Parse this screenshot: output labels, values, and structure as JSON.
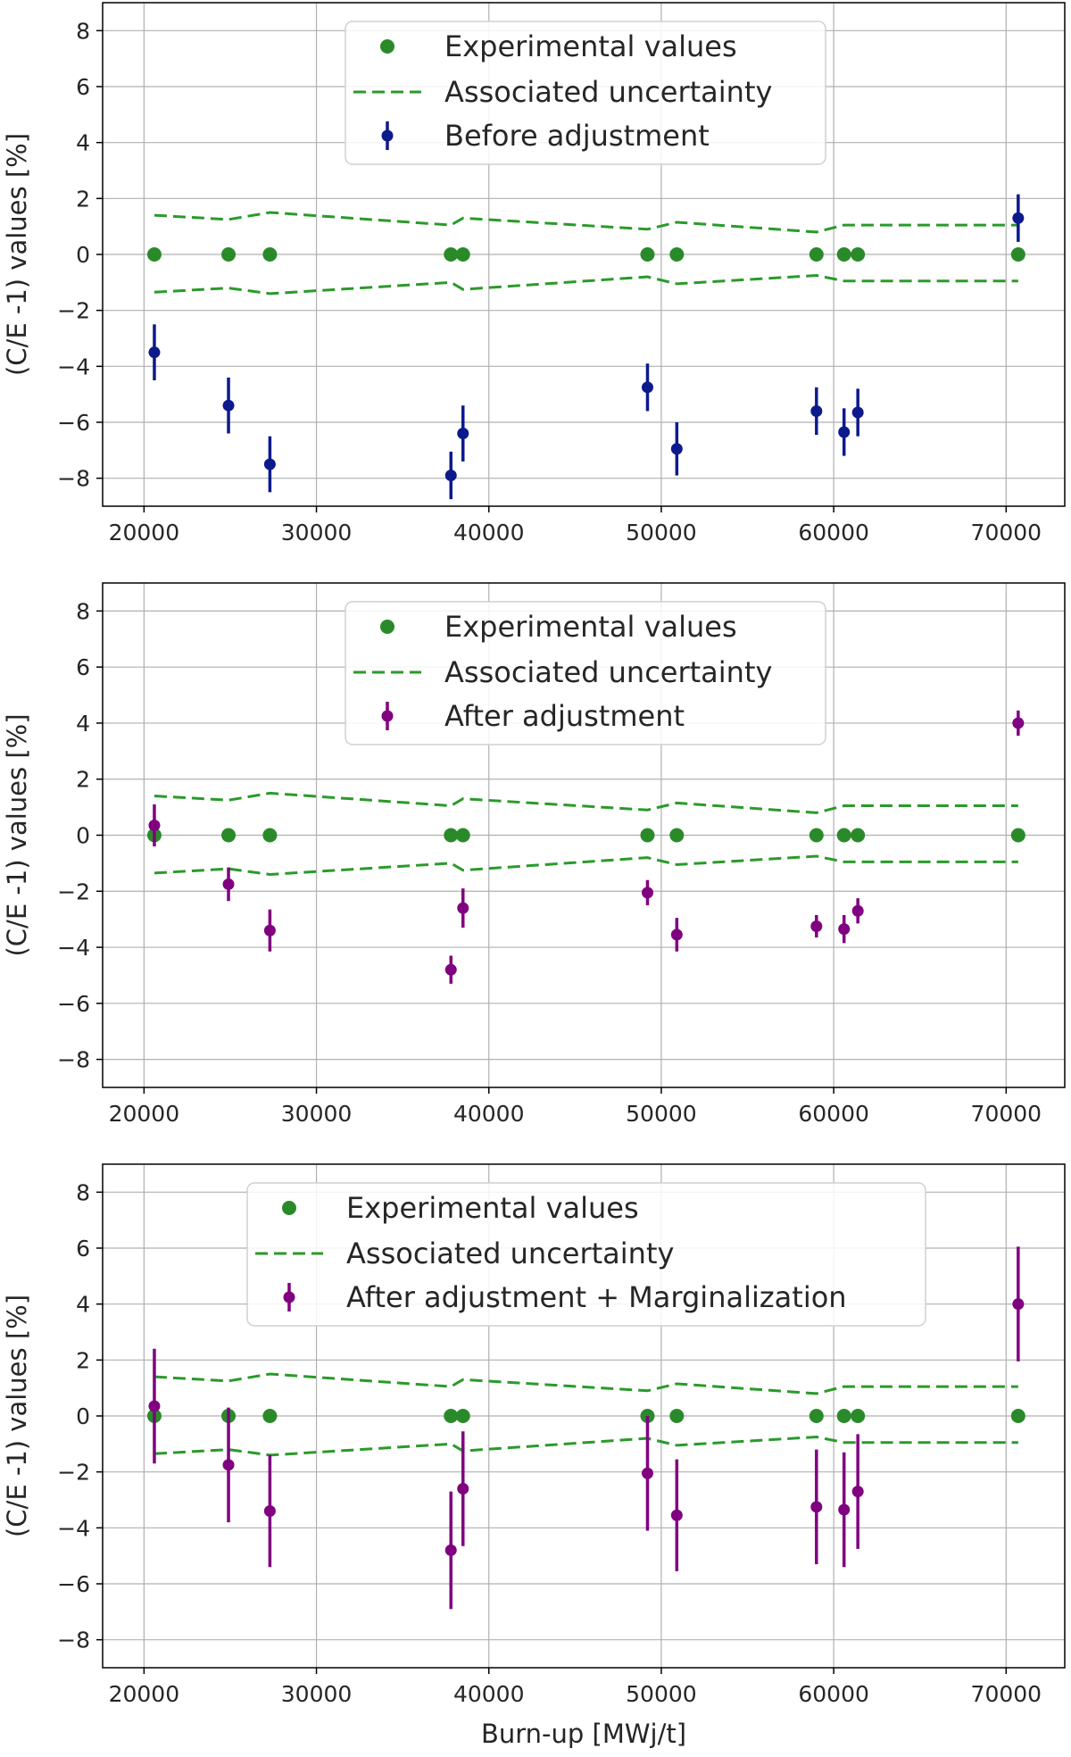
{
  "chart_data": [
    {
      "type": "scatter",
      "ylabel": "(C/E -1) values [%]",
      "xlabel": "",
      "xlim": [
        17600,
        73400
      ],
      "ylim": [
        -9,
        9
      ],
      "xticks": [
        20000,
        30000,
        40000,
        50000,
        60000,
        70000
      ],
      "yticks": [
        -8,
        -6,
        -4,
        -2,
        0,
        2,
        4,
        6,
        8
      ],
      "grid": true,
      "legend_position": "top-center",
      "legend": [
        "Experimental values",
        "Associated uncertainty",
        "Before adjustment"
      ],
      "experimental": {
        "x": [
          20600,
          24900,
          27300,
          37800,
          38500,
          49200,
          50900,
          59000,
          60600,
          61400,
          70700
        ],
        "y": [
          0,
          0,
          0,
          0,
          0,
          0,
          0,
          0,
          0,
          0,
          0
        ]
      },
      "uncertainty": {
        "x": [
          20600,
          24900,
          27300,
          37800,
          38500,
          49200,
          50900,
          59000,
          60600,
          61400,
          70700
        ],
        "upper": [
          1.4,
          1.25,
          1.5,
          1.05,
          1.3,
          0.9,
          1.15,
          0.8,
          1.05,
          1.05,
          1.05
        ],
        "lower": [
          -1.35,
          -1.2,
          -1.4,
          -1.0,
          -1.25,
          -0.8,
          -1.05,
          -0.75,
          -0.95,
          -0.95,
          -0.95
        ]
      },
      "series": {
        "name": "Before adjustment",
        "color": "#0d1a8c",
        "x": [
          20600,
          24900,
          27300,
          37800,
          38500,
          49200,
          50900,
          59000,
          60600,
          61400,
          70700
        ],
        "y": [
          -3.5,
          -5.4,
          -7.5,
          -7.9,
          -6.4,
          -4.75,
          -6.95,
          -5.6,
          -6.35,
          -5.65,
          1.3
        ],
        "err": [
          1.0,
          1.0,
          1.0,
          0.85,
          1.0,
          0.85,
          0.95,
          0.85,
          0.85,
          0.85,
          0.85
        ]
      }
    },
    {
      "type": "scatter",
      "ylabel": "(C/E -1) values [%]",
      "xlabel": "",
      "xlim": [
        17600,
        73400
      ],
      "ylim": [
        -9,
        9
      ],
      "xticks": [
        20000,
        30000,
        40000,
        50000,
        60000,
        70000
      ],
      "yticks": [
        -8,
        -6,
        -4,
        -2,
        0,
        2,
        4,
        6,
        8
      ],
      "grid": true,
      "legend_position": "top-center",
      "legend": [
        "Experimental values",
        "Associated uncertainty",
        "After adjustment"
      ],
      "experimental": {
        "x": [
          20600,
          24900,
          27300,
          37800,
          38500,
          49200,
          50900,
          59000,
          60600,
          61400,
          70700
        ],
        "y": [
          0,
          0,
          0,
          0,
          0,
          0,
          0,
          0,
          0,
          0,
          0
        ]
      },
      "uncertainty": {
        "x": [
          20600,
          24900,
          27300,
          37800,
          38500,
          49200,
          50900,
          59000,
          60600,
          61400,
          70700
        ],
        "upper": [
          1.4,
          1.25,
          1.5,
          1.05,
          1.3,
          0.9,
          1.15,
          0.8,
          1.05,
          1.05,
          1.05
        ],
        "lower": [
          -1.35,
          -1.2,
          -1.4,
          -1.0,
          -1.25,
          -0.8,
          -1.05,
          -0.75,
          -0.95,
          -0.95,
          -0.95
        ]
      },
      "series": {
        "name": "After adjustment",
        "color": "#800080",
        "x": [
          20600,
          24900,
          27300,
          37800,
          38500,
          49200,
          50900,
          59000,
          60600,
          61400,
          70700
        ],
        "y": [
          0.35,
          -1.75,
          -3.4,
          -4.8,
          -2.6,
          -2.05,
          -3.55,
          -3.25,
          -3.35,
          -2.7,
          4.0
        ],
        "err": [
          0.75,
          0.6,
          0.75,
          0.5,
          0.7,
          0.45,
          0.6,
          0.4,
          0.5,
          0.45,
          0.45
        ]
      }
    },
    {
      "type": "scatter",
      "ylabel": "(C/E -1) values [%]",
      "xlabel": "Burn-up [MWj/t]",
      "xlim": [
        17600,
        73400
      ],
      "ylim": [
        -9,
        9
      ],
      "xticks": [
        20000,
        30000,
        40000,
        50000,
        60000,
        70000
      ],
      "yticks": [
        -8,
        -6,
        -4,
        -2,
        0,
        2,
        4,
        6,
        8
      ],
      "grid": true,
      "legend_position": "top-center",
      "legend": [
        "Experimental values",
        "Associated uncertainty",
        "After adjustment + Marginalization"
      ],
      "experimental": {
        "x": [
          20600,
          24900,
          27300,
          37800,
          38500,
          49200,
          50900,
          59000,
          60600,
          61400,
          70700
        ],
        "y": [
          0,
          0,
          0,
          0,
          0,
          0,
          0,
          0,
          0,
          0,
          0
        ]
      },
      "uncertainty": {
        "x": [
          20600,
          24900,
          27300,
          37800,
          38500,
          49200,
          50900,
          59000,
          60600,
          61400,
          70700
        ],
        "upper": [
          1.4,
          1.25,
          1.5,
          1.05,
          1.3,
          0.9,
          1.15,
          0.8,
          1.05,
          1.05,
          1.05
        ],
        "lower": [
          -1.35,
          -1.2,
          -1.4,
          -1.0,
          -1.25,
          -0.8,
          -1.05,
          -0.75,
          -0.95,
          -0.95,
          -0.95
        ]
      },
      "series": {
        "name": "After adjustment + Marginalization",
        "color": "#800080",
        "x": [
          20600,
          24900,
          27300,
          37800,
          38500,
          49200,
          50900,
          59000,
          60600,
          61400,
          70700
        ],
        "y": [
          0.35,
          -1.75,
          -3.4,
          -4.8,
          -2.6,
          -2.05,
          -3.55,
          -3.25,
          -3.35,
          -2.7,
          4.0
        ],
        "err": [
          2.05,
          2.05,
          2.0,
          2.1,
          2.05,
          2.05,
          2.0,
          2.05,
          2.05,
          2.05,
          2.05
        ]
      }
    }
  ],
  "colors": {
    "experimental": "#2a8a2a",
    "uncertainty": "#2a9a2a",
    "grid": "#b0b0b0",
    "axes": "#000000"
  }
}
